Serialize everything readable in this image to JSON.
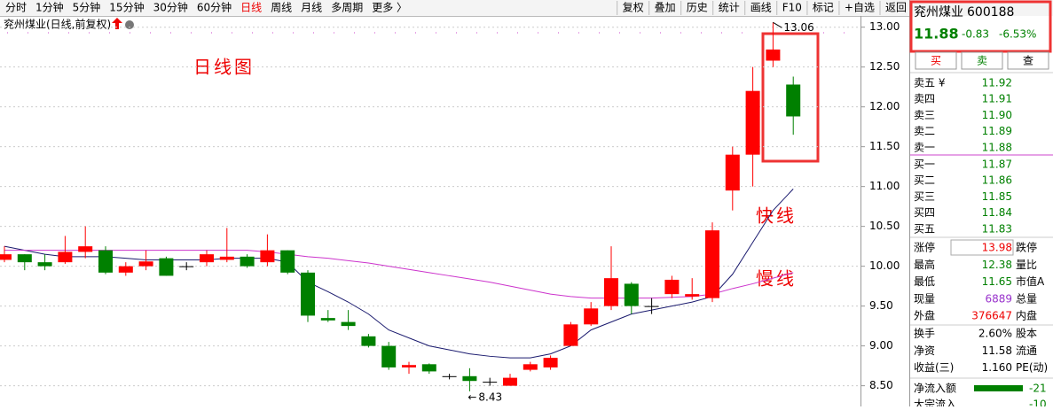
{
  "toolbar": {
    "periods": [
      "分时",
      "1分钟",
      "5分钟",
      "15分钟",
      "30分钟",
      "60分钟",
      "日线",
      "周线",
      "月线",
      "多周期",
      "更多 〉"
    ],
    "active": "日线",
    "tools": [
      "复权",
      "叠加",
      "历史",
      "统计",
      "画线",
      "F10",
      "标记",
      "+自选",
      "返回"
    ]
  },
  "chart_title": "兖州煤业(日线,前复权)",
  "chart_data": {
    "type": "candlestick",
    "annotation": "日线图",
    "open": [
      10.08,
      10.15,
      10.05,
      10.05,
      10.18,
      10.2,
      9.92,
      10.0,
      10.1,
      10.0,
      10.05,
      10.08,
      10.12,
      10.05,
      10.2,
      9.92,
      9.35,
      9.3,
      9.12,
      9.0,
      8.73,
      8.77,
      8.62,
      8.62,
      8.55,
      8.5,
      8.7,
      8.73,
      9.0,
      9.27,
      9.5,
      9.78,
      9.5,
      9.65,
      9.62,
      9.6,
      10.95,
      11.4,
      12.58,
      12.28
    ],
    "high": [
      10.25,
      10.15,
      10.15,
      10.38,
      10.5,
      10.25,
      10.05,
      10.2,
      10.12,
      10.05,
      10.2,
      10.48,
      10.15,
      10.4,
      10.2,
      9.95,
      9.45,
      9.45,
      9.15,
      9.05,
      8.8,
      8.78,
      8.65,
      8.72,
      8.6,
      8.65,
      8.8,
      8.88,
      9.3,
      9.55,
      10.25,
      9.8,
      9.6,
      9.88,
      9.85,
      10.55,
      11.5,
      12.5,
      13.06,
      12.38
    ],
    "low": [
      10.05,
      9.95,
      9.95,
      10.03,
      10.1,
      9.9,
      9.88,
      9.95,
      9.88,
      9.95,
      10.0,
      10.05,
      9.98,
      10.0,
      9.9,
      9.3,
      9.3,
      9.2,
      8.98,
      8.7,
      8.65,
      8.65,
      8.58,
      8.43,
      8.5,
      8.5,
      8.68,
      8.7,
      9.0,
      9.25,
      9.45,
      9.4,
      9.4,
      9.6,
      9.58,
      9.55,
      10.7,
      11.0,
      12.5,
      11.65
    ],
    "close": [
      10.15,
      10.05,
      10.0,
      10.18,
      10.25,
      9.92,
      10.0,
      10.06,
      9.88,
      10.0,
      10.15,
      10.12,
      10.0,
      10.2,
      9.92,
      9.38,
      9.32,
      9.25,
      9.0,
      8.73,
      8.76,
      8.68,
      8.62,
      8.56,
      8.55,
      8.6,
      8.77,
      8.85,
      9.27,
      9.47,
      9.85,
      9.5,
      9.5,
      9.83,
      9.65,
      10.45,
      11.4,
      12.2,
      12.72,
      11.88
    ],
    "series": [
      {
        "name": "快线",
        "color": "#1a1a6e",
        "values": [
          10.25,
          10.2,
          10.15,
          10.12,
          10.12,
          10.12,
          10.1,
          10.08,
          10.08,
          10.08,
          10.08,
          10.1,
          10.1,
          10.1,
          10.05,
          9.8,
          9.68,
          9.55,
          9.4,
          9.2,
          9.1,
          9.0,
          8.95,
          8.9,
          8.87,
          8.85,
          8.85,
          8.9,
          9.0,
          9.2,
          9.3,
          9.4,
          9.45,
          9.5,
          9.55,
          9.62,
          9.9,
          10.3,
          10.7,
          10.97
        ]
      },
      {
        "name": "慢线",
        "color": "#cc33cc",
        "values": [
          10.2,
          10.2,
          10.2,
          10.2,
          10.2,
          10.2,
          10.2,
          10.2,
          10.2,
          10.2,
          10.2,
          10.2,
          10.2,
          10.18,
          10.15,
          10.12,
          10.1,
          10.07,
          10.04,
          10.0,
          9.96,
          9.92,
          9.88,
          9.84,
          9.8,
          9.75,
          9.7,
          9.65,
          9.62,
          9.6,
          9.6,
          9.6,
          9.6,
          9.61,
          9.62,
          9.65,
          9.72,
          9.78,
          9.85,
          9.92
        ]
      }
    ],
    "ylim": [
      8.24,
      13.13
    ],
    "yticks": [
      {
        "value": 13,
        "label": "13.00"
      },
      {
        "value": 12.5,
        "label": "12.50"
      },
      {
        "value": 12,
        "label": "12.00"
      },
      {
        "value": 11.5,
        "label": "11.50"
      },
      {
        "value": 11,
        "label": "11.00"
      },
      {
        "value": 10.5,
        "label": "10.50"
      },
      {
        "value": 10,
        "label": "10.00"
      },
      {
        "value": 9.5,
        "label": "9.50"
      },
      {
        "value": 9,
        "label": "9.00"
      },
      {
        "value": 8.5,
        "label": "8.50"
      }
    ]
  },
  "quote": {
    "name": "兖州煤业",
    "code": "600188",
    "price": "11.88",
    "change": "-0.83",
    "pct": "-6.53%",
    "buttons": [
      "买",
      "卖",
      "查"
    ]
  },
  "asks": [
    [
      "卖五 ¥",
      "11.92"
    ],
    [
      "卖四",
      "11.91"
    ],
    [
      "卖三",
      "11.90"
    ],
    [
      "卖二",
      "11.89"
    ],
    [
      "卖一",
      "11.88"
    ]
  ],
  "bids": [
    [
      "买一",
      "11.87"
    ],
    [
      "买二",
      "11.86"
    ],
    [
      "买三",
      "11.85"
    ],
    [
      "买四",
      "11.84"
    ],
    [
      "买五",
      "11.83"
    ]
  ],
  "stats": [
    [
      "涨停",
      "13.98",
      "跌停"
    ],
    [
      "最高",
      "12.38",
      "量比"
    ],
    [
      "最低",
      "11.65",
      "市值A"
    ],
    [
      "现量",
      "6889",
      "总量"
    ],
    [
      "外盘",
      "376647",
      "内盘"
    ]
  ],
  "stats2": [
    [
      "换手",
      "2.60%",
      "股本"
    ],
    [
      "净资",
      "11.58",
      "流通"
    ],
    [
      "收益(三)",
      "1.160",
      "PE(动)"
    ]
  ],
  "flows": [
    [
      "净流入额",
      "-21"
    ],
    [
      "大宗流入",
      "-10"
    ]
  ]
}
